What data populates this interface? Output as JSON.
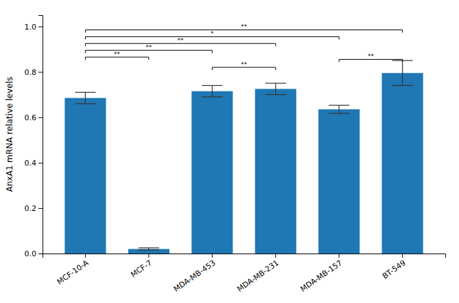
{
  "chart_data": {
    "type": "bar",
    "y_label": "AnxA1 mRNA relative levels",
    "categories": [
      "MCF-10-A",
      "MCF-7",
      "MDA-MB-453",
      "MDA-MB-231",
      "MDA-MB-157",
      "BT-549"
    ],
    "values": [
      0.685,
      0.02,
      0.715,
      0.725,
      0.635,
      0.795
    ],
    "errors": [
      0.025,
      0.005,
      0.025,
      0.025,
      0.018,
      0.055
    ],
    "ylim": [
      0.0,
      1.05
    ],
    "yticks": [
      {
        "value": 0.0,
        "label": "0.0"
      },
      0.2,
      0.4,
      0.6,
      0.8,
      {
        "value": 1.0,
        "label": "1.0"
      }
    ],
    "grid": false,
    "annotations": [
      {
        "from": "MCF-10-A",
        "to": "MCF-7",
        "y": 0.865,
        "text": "**"
      },
      {
        "from": "MCF-10-A",
        "to": "MDA-MB-453",
        "y": 0.895,
        "text": "**"
      },
      {
        "from": "MCF-10-A",
        "to": "MDA-MB-231",
        "y": 0.925,
        "text": "**"
      },
      {
        "from": "MCF-10-A",
        "to": "MDA-MB-157",
        "y": 0.955,
        "text": "*"
      },
      {
        "from": "MCF-10-A",
        "to": "BT-549",
        "y": 0.985,
        "text": "**"
      },
      {
        "from": "MDA-MB-453",
        "to": "MDA-MB-231",
        "y": 0.82,
        "text": "**"
      },
      {
        "from": "MDA-MB-157",
        "to": "BT-549",
        "y": 0.855,
        "text": "**"
      }
    ]
  }
}
